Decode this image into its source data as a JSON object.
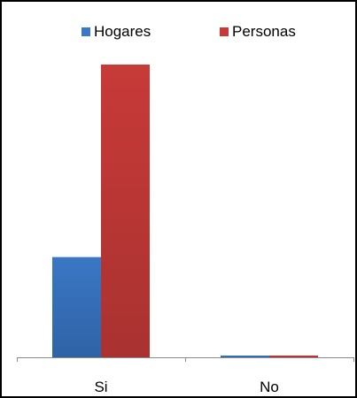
{
  "chart_data": {
    "type": "bar",
    "categories": [
      "Si",
      "No"
    ],
    "series": [
      {
        "name": "Hogares",
        "values": [
          100,
          0.3
        ],
        "color": "#3a77c4"
      },
      {
        "name": "Personas",
        "values": [
          292,
          1.3
        ],
        "color": "#c73a38"
      }
    ],
    "title": "",
    "xlabel": "",
    "ylabel": "",
    "ylim": [
      0,
      292
    ],
    "grid": false,
    "legend": "top"
  }
}
